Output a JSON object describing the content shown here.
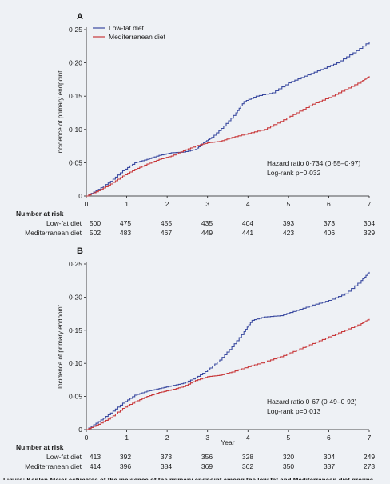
{
  "colors": {
    "low_fat": "#3a4aa0",
    "mediterranean": "#c8383a",
    "axis": "#1a1a1a",
    "background": "#eef1f5"
  },
  "caption": "Figure: Kaplan-Meier estimates of the incidence of the primary endpoint among the low-fat and Mediterranean diet groups",
  "chart_data": [
    {
      "type": "line",
      "panel": "A",
      "ylabel": "Incidence of primary endpoint",
      "xlabel": "",
      "xlim": [
        0,
        7
      ],
      "ylim": [
        0,
        0.25
      ],
      "x_ticks": [
        "0",
        "1",
        "2",
        "3",
        "4",
        "5",
        "6",
        "7"
      ],
      "y_ticks": [
        "0",
        "0·05",
        "0·10",
        "0·15",
        "0·20",
        "0·25"
      ],
      "legend": {
        "position": "top-left"
      },
      "series": [
        {
          "name": "Low-fat diet",
          "color": "#3a4aa0",
          "x": [
            0,
            0.3,
            0.6,
            0.9,
            1.2,
            1.5,
            1.8,
            2.1,
            2.4,
            2.7,
            2.9,
            3.1,
            3.4,
            3.7,
            3.9,
            4.2,
            4.6,
            5.0,
            5.4,
            5.8,
            6.2,
            6.6,
            7.0
          ],
          "y": [
            0,
            0.01,
            0.022,
            0.038,
            0.05,
            0.055,
            0.061,
            0.065,
            0.066,
            0.07,
            0.08,
            0.088,
            0.105,
            0.125,
            0.142,
            0.15,
            0.155,
            0.17,
            0.18,
            0.19,
            0.2,
            0.215,
            0.232
          ]
        },
        {
          "name": "Mediterranean diet",
          "color": "#c8383a",
          "x": [
            0,
            0.3,
            0.6,
            0.9,
            1.2,
            1.5,
            1.8,
            2.1,
            2.4,
            2.7,
            3.0,
            3.3,
            3.6,
            4.0,
            4.4,
            4.8,
            5.2,
            5.6,
            6.0,
            6.4,
            6.8,
            7.0
          ],
          "y": [
            0,
            0.008,
            0.018,
            0.03,
            0.04,
            0.048,
            0.055,
            0.06,
            0.068,
            0.075,
            0.08,
            0.082,
            0.088,
            0.094,
            0.1,
            0.112,
            0.125,
            0.138,
            0.148,
            0.16,
            0.172,
            0.18
          ]
        }
      ],
      "annotations": [
        "Hazard ratio 0·734 (0·55–0·97)",
        "Log-rank p=0·032"
      ],
      "number_at_risk": {
        "title": "Number at risk",
        "rows": [
          {
            "label": "Low-fat diet",
            "values": [
              "500",
              "475",
              "455",
              "435",
              "404",
              "393",
              "373",
              "304"
            ]
          },
          {
            "label": "Mediterranean diet",
            "values": [
              "502",
              "483",
              "467",
              "449",
              "441",
              "423",
              "406",
              "329"
            ]
          }
        ]
      }
    },
    {
      "type": "line",
      "panel": "B",
      "ylabel": "Incidence of primary endpoint",
      "xlabel": "Year",
      "xlim": [
        0,
        7
      ],
      "ylim": [
        0,
        0.25
      ],
      "x_ticks": [
        "0",
        "1",
        "2",
        "3",
        "4",
        "5",
        "6",
        "7"
      ],
      "y_ticks": [
        "0",
        "0·05",
        "0·10",
        "0·15",
        "0·20",
        "0·25"
      ],
      "series": [
        {
          "name": "Low-fat diet",
          "color": "#3a4aa0",
          "x": [
            0,
            0.3,
            0.6,
            0.9,
            1.2,
            1.5,
            1.8,
            2.1,
            2.4,
            2.7,
            3.0,
            3.3,
            3.6,
            3.9,
            4.1,
            4.4,
            4.8,
            5.2,
            5.6,
            6.0,
            6.4,
            6.8,
            7.0
          ],
          "y": [
            0,
            0.012,
            0.025,
            0.04,
            0.052,
            0.058,
            0.062,
            0.066,
            0.07,
            0.078,
            0.09,
            0.105,
            0.125,
            0.148,
            0.165,
            0.17,
            0.172,
            0.18,
            0.188,
            0.195,
            0.205,
            0.225,
            0.238
          ]
        },
        {
          "name": "Mediterranean diet",
          "color": "#c8383a",
          "x": [
            0,
            0.3,
            0.6,
            0.9,
            1.2,
            1.5,
            1.8,
            2.1,
            2.4,
            2.7,
            3.0,
            3.3,
            3.6,
            4.0,
            4.4,
            4.8,
            5.2,
            5.6,
            6.0,
            6.4,
            6.8,
            7.0
          ],
          "y": [
            0,
            0.008,
            0.018,
            0.032,
            0.042,
            0.05,
            0.056,
            0.06,
            0.065,
            0.074,
            0.08,
            0.082,
            0.087,
            0.095,
            0.102,
            0.11,
            0.12,
            0.13,
            0.14,
            0.15,
            0.16,
            0.167
          ]
        }
      ],
      "annotations": [
        "Hazard ratio 0·67 (0·49–0·92)",
        "Log-rank p=0·013"
      ],
      "number_at_risk": {
        "title": "Number at risk",
        "rows": [
          {
            "label": "Low-fat diet",
            "values": [
              "413",
              "392",
              "373",
              "356",
              "328",
              "320",
              "304",
              "249"
            ]
          },
          {
            "label": "Mediterranean diet",
            "values": [
              "414",
              "396",
              "384",
              "369",
              "362",
              "350",
              "337",
              "273"
            ]
          }
        ]
      }
    }
  ]
}
